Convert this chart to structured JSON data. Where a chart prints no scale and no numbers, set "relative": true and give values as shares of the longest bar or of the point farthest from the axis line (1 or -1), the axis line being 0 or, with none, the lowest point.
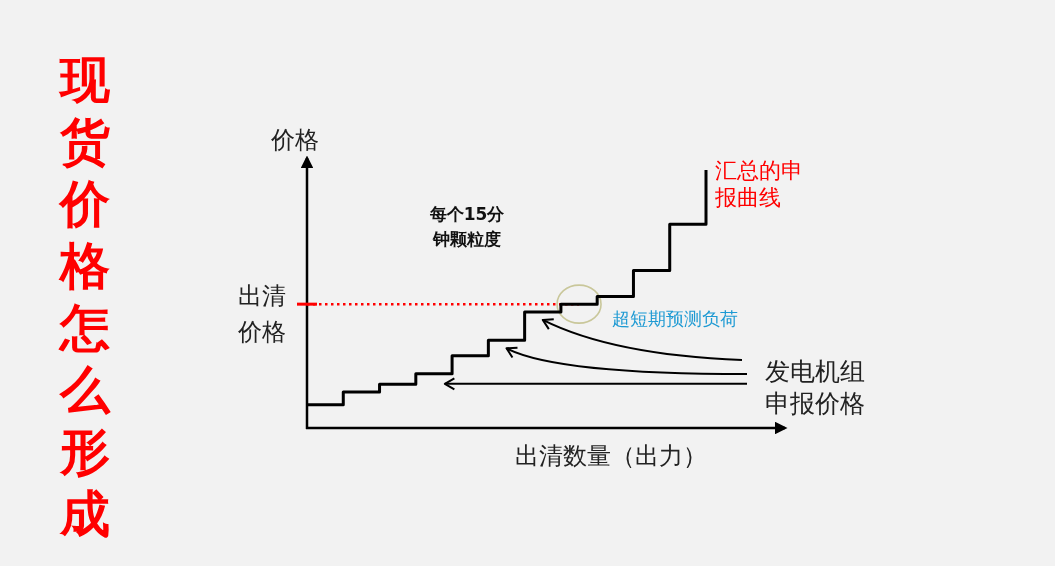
{
  "chart_data": {
    "type": "step",
    "title": "现货价格怎么形成",
    "xlabel": "出清数量（出力）",
    "ylabel": "价格",
    "categories": [
      null,
      null,
      null,
      null,
      null,
      null,
      null,
      null,
      null,
      null,
      null,
      null
    ],
    "relative": true,
    "series": [
      {
        "color": "#000000",
        "values": [
          0.09,
          0.14,
          0.17,
          0.21,
          0.28,
          0.34,
          0.45,
          0.48,
          0.51,
          0.61,
          0.79,
          1
        ]
      }
    ],
    "ref_lines": [
      {
        "axis": "y",
        "value": 0.48,
        "label": "出清价格",
        "color": "#ff0000",
        "line_style": "dotted"
      }
    ],
    "annotations": [
      "每个15分钟颗粒度",
      "超短期预测负荷",
      "发电机组申报价格",
      "汇总的申报曲线"
    ]
  }
}
